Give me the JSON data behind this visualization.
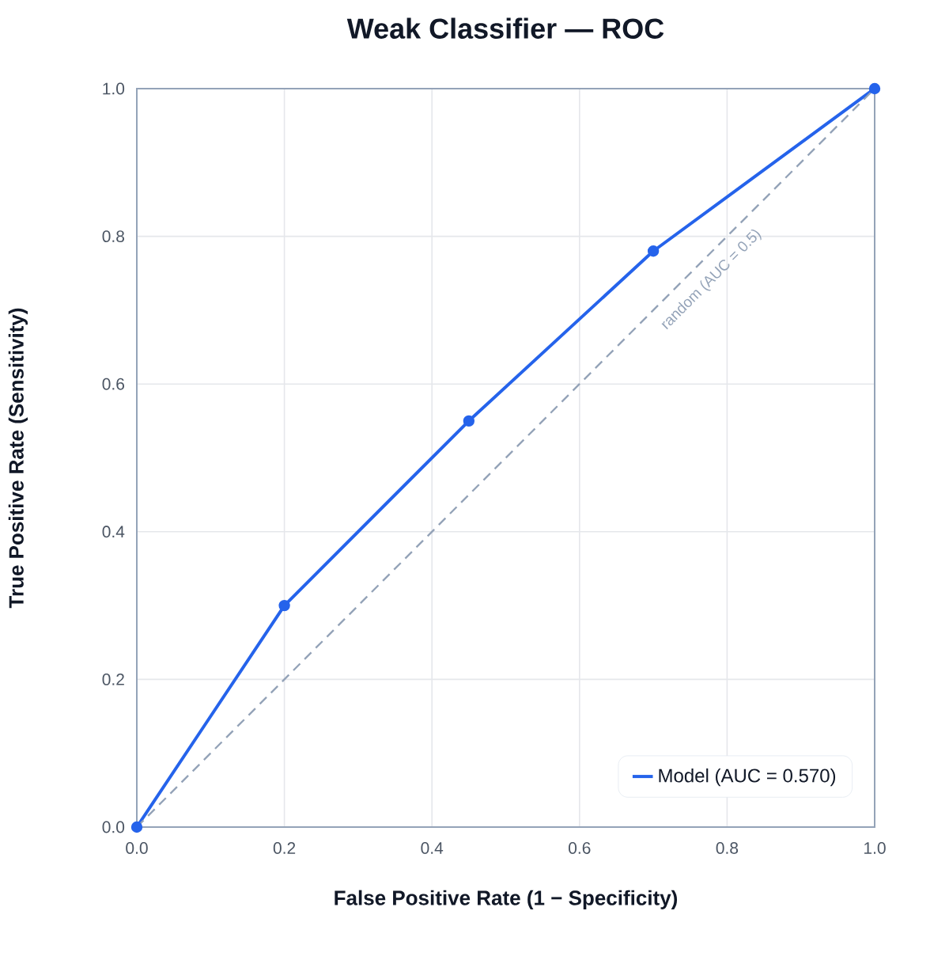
{
  "chart_data": {
    "type": "line",
    "title": "Weak Classifier — ROC",
    "xlabel": "False Positive Rate (1 − Specificity)",
    "ylabel": "True Positive Rate (Sensitivity)",
    "series": [
      {
        "name": "Model (AUC = 0.570)",
        "color": "#2563eb",
        "x": [
          0,
          0.2,
          0.45,
          0.7,
          1
        ],
        "values": [
          0,
          0.3,
          0.55,
          0.78,
          1
        ],
        "marker": "circle",
        "line_style": "solid"
      },
      {
        "name": "random (AUC = 0.5)",
        "color": "#94a3b8",
        "x": [
          0,
          1
        ],
        "values": [
          0,
          1
        ],
        "marker": "none",
        "line_style": "dashed"
      }
    ],
    "xlim": [
      0,
      1
    ],
    "ylim": [
      0,
      1
    ],
    "xticks": [
      {
        "value": 0,
        "label": "0.0"
      },
      {
        "value": 0.2,
        "label": "0.2"
      },
      {
        "value": 0.4,
        "label": "0.4"
      },
      {
        "value": 0.6,
        "label": "0.6"
      },
      {
        "value": 0.8,
        "label": "0.8"
      },
      {
        "value": 1,
        "label": "1.0"
      }
    ],
    "yticks": [
      {
        "value": 0,
        "label": "0.0"
      },
      {
        "value": 0.2,
        "label": "0.2"
      },
      {
        "value": 0.4,
        "label": "0.4"
      },
      {
        "value": 0.6,
        "label": "0.6"
      },
      {
        "value": 0.8,
        "label": "0.8"
      },
      {
        "value": 1,
        "label": "1.0"
      }
    ],
    "grid": true,
    "legend": "bottom right"
  }
}
